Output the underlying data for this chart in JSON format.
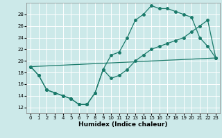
{
  "xlabel": "Humidex (Indice chaleur)",
  "xlim": [
    -0.5,
    23.5
  ],
  "ylim": [
    11.0,
    30.0
  ],
  "yticks": [
    12,
    14,
    16,
    18,
    20,
    22,
    24,
    26,
    28
  ],
  "xticks": [
    0,
    1,
    2,
    3,
    4,
    5,
    6,
    7,
    8,
    9,
    10,
    11,
    12,
    13,
    14,
    15,
    16,
    17,
    18,
    19,
    20,
    21,
    22,
    23
  ],
  "bg_color": "#cce9e9",
  "grid_color": "#ffffff",
  "line_color": "#1a7a6a",
  "line1_x": [
    0,
    1,
    2,
    3,
    4,
    5,
    6,
    7,
    8,
    9,
    10,
    11,
    12,
    13,
    14,
    15,
    16,
    17,
    18,
    19,
    20,
    21,
    22,
    23
  ],
  "line1_y": [
    19,
    17.5,
    15,
    14.5,
    14,
    13.5,
    12.5,
    12.5,
    14.5,
    18.5,
    21,
    21.5,
    24,
    27,
    28,
    29.5,
    29,
    29,
    28.5,
    28,
    27.5,
    24,
    22.5,
    20.5
  ],
  "line2_x": [
    0,
    1,
    2,
    3,
    4,
    5,
    6,
    7,
    8,
    9,
    10,
    11,
    12,
    13,
    14,
    15,
    16,
    17,
    18,
    19,
    20,
    21,
    22,
    23
  ],
  "line2_y": [
    19,
    17.5,
    15,
    14.5,
    14,
    13.5,
    12.5,
    12.5,
    14.5,
    18.5,
    17,
    17.5,
    18.5,
    20,
    21,
    22,
    22.5,
    23,
    23.5,
    24,
    25,
    26,
    27,
    20.5
  ],
  "line3_x": [
    0,
    1,
    2,
    3,
    4,
    5,
    6,
    7,
    8,
    9,
    10,
    11,
    12,
    13,
    14,
    15,
    16,
    17,
    18,
    19,
    20,
    21,
    22,
    23
  ],
  "line3_y": [
    19,
    19.07,
    19.13,
    19.2,
    19.26,
    19.33,
    19.39,
    19.46,
    19.52,
    19.59,
    19.65,
    19.72,
    19.78,
    19.85,
    19.91,
    19.98,
    20.04,
    20.11,
    20.17,
    20.24,
    20.3,
    20.37,
    20.43,
    20.5
  ],
  "marker_size": 2.5,
  "line_width": 0.9,
  "tick_fontsize": 5.0,
  "xlabel_fontsize": 6.5
}
